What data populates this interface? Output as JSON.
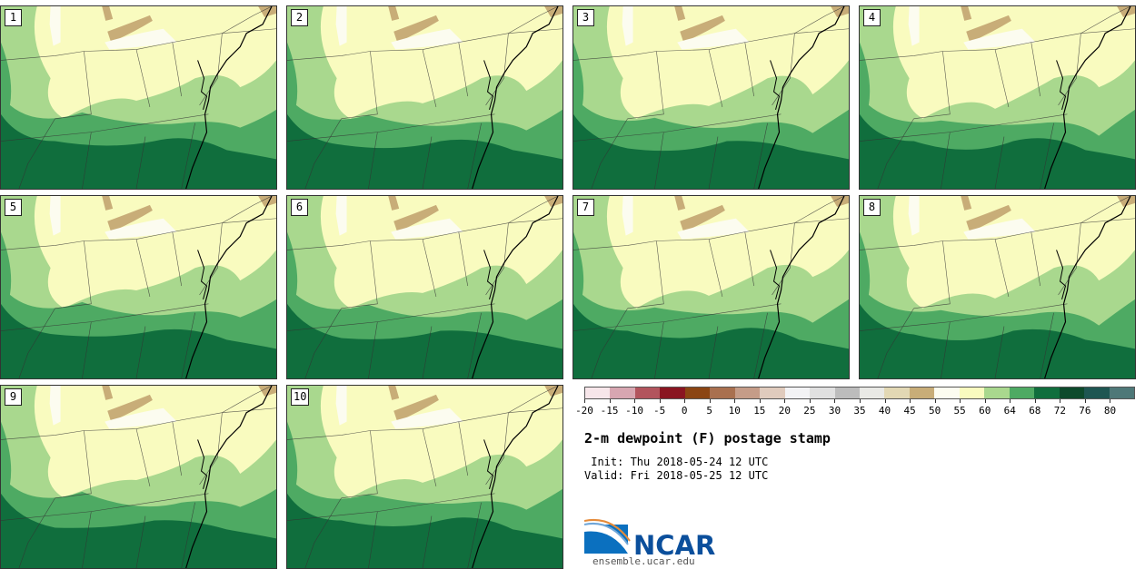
{
  "panels": [
    {
      "label": "1"
    },
    {
      "label": "2"
    },
    {
      "label": "3"
    },
    {
      "label": "4"
    },
    {
      "label": "5"
    },
    {
      "label": "6"
    },
    {
      "label": "7"
    },
    {
      "label": "8"
    },
    {
      "label": "9"
    },
    {
      "label": "10"
    }
  ],
  "colorbar": {
    "colors": [
      "#f7e6ea",
      "#d7a6b1",
      "#b2545d",
      "#8a1521",
      "#8b4513",
      "#a9704f",
      "#c59c88",
      "#e0cbbd",
      "#f3f3f5",
      "#e0e0e0",
      "#bcbcbc",
      "#e9e9e5",
      "#e2d8b4",
      "#c8ad78",
      "#fcfcf0",
      "#f9fbbf",
      "#a9d88e",
      "#4eaa63",
      "#106e3d",
      "#0d4a2c",
      "#1e5652",
      "#4e7878"
    ],
    "ticks": [
      "-20",
      "-15",
      "-10",
      "-5",
      "0",
      "5",
      "10",
      "15",
      "20",
      "25",
      "30",
      "35",
      "40",
      "45",
      "50",
      "55",
      "60",
      "64",
      "68",
      "72",
      "76",
      "80"
    ]
  },
  "title": "2-m dewpoint (F) postage stamp",
  "init": " Init: Thu 2018-05-24 12 UTC",
  "valid": "Valid: Fri 2018-05-25 12 UTC",
  "logo": {
    "text": "NCAR",
    "url": "ensemble.ucar.edu"
  }
}
